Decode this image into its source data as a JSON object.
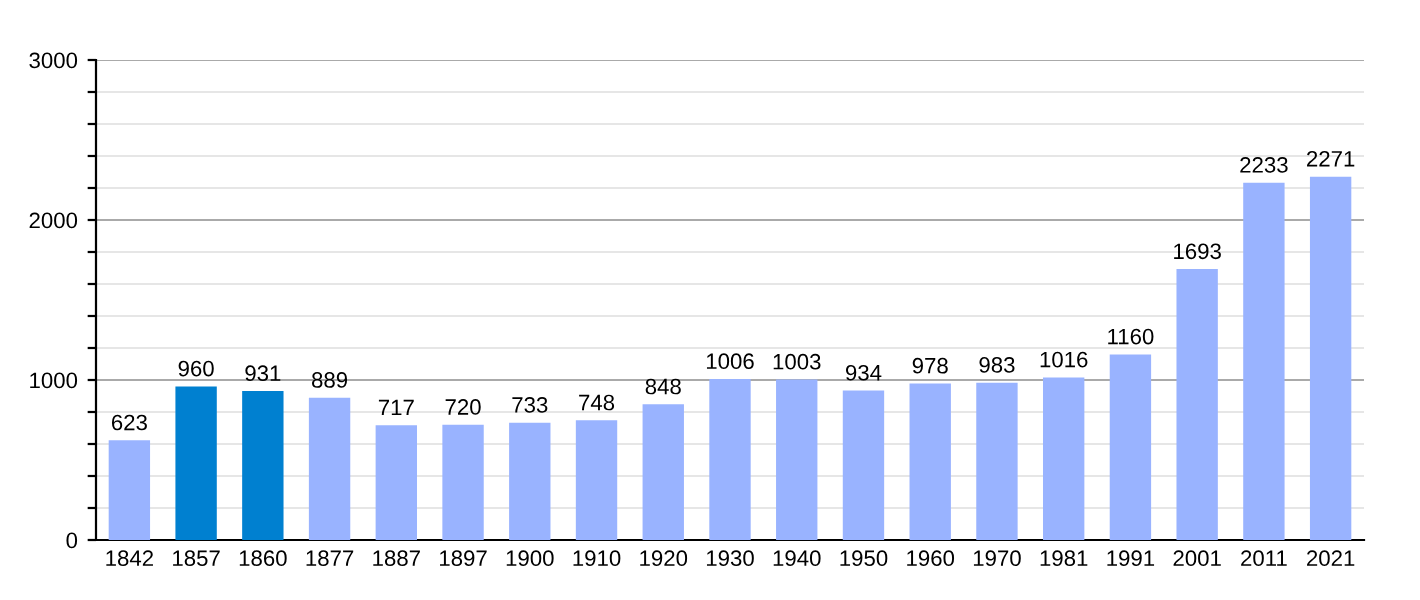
{
  "chart_data": {
    "type": "bar",
    "categories": [
      "1842",
      "1857",
      "1860",
      "1877",
      "1887",
      "1897",
      "1900",
      "1910",
      "1920",
      "1930",
      "1940",
      "1950",
      "1960",
      "1970",
      "1981",
      "1991",
      "2001",
      "2011",
      "2021"
    ],
    "values": [
      623,
      960,
      931,
      889,
      717,
      720,
      733,
      748,
      848,
      1006,
      1003,
      934,
      978,
      983,
      1016,
      1160,
      1693,
      2233,
      2271
    ],
    "colors": [
      "#99b3ff",
      "#0080d0",
      "#0080d0",
      "#99b3ff",
      "#99b3ff",
      "#99b3ff",
      "#99b3ff",
      "#99b3ff",
      "#99b3ff",
      "#99b3ff",
      "#99b3ff",
      "#99b3ff",
      "#99b3ff",
      "#99b3ff",
      "#99b3ff",
      "#99b3ff",
      "#99b3ff",
      "#99b3ff",
      "#99b3ff"
    ],
    "ylim": [
      0,
      3000
    ],
    "yticks": [
      0,
      {
        "value": 200,
        "label": null
      },
      {
        "value": 400,
        "label": null
      },
      {
        "value": 600,
        "label": null
      },
      {
        "value": 800,
        "label": null
      },
      1000,
      {
        "value": 1200,
        "label": null
      },
      {
        "value": 1400,
        "label": null
      },
      {
        "value": 1600,
        "label": null
      },
      {
        "value": 1800,
        "label": null
      },
      2000,
      {
        "value": 2200,
        "label": null
      },
      {
        "value": 2400,
        "label": null
      },
      {
        "value": 2600,
        "label": null
      },
      {
        "value": 2800,
        "label": null
      },
      3000
    ],
    "grid": "y",
    "data_labels": true
  }
}
